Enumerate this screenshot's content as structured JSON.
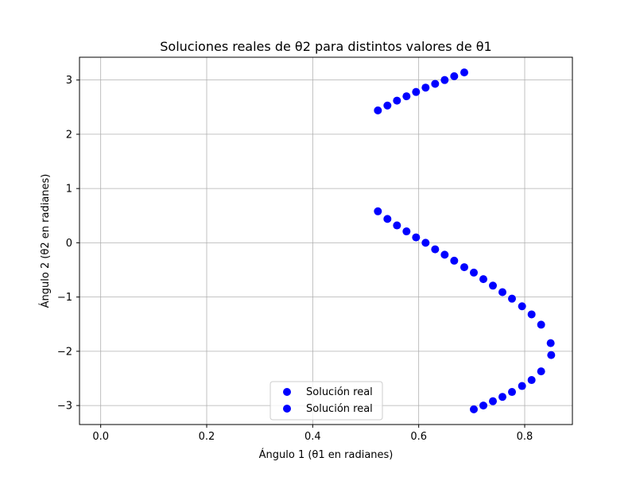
{
  "chart_data": {
    "type": "scatter",
    "title": "Soluciones reales de θ2 para distintos valores de θ1",
    "xlabel": "Ángulo 1 (θ1 en radianes)",
    "ylabel": "Ángulo 2 (θ2 en radianes)",
    "xlim": [
      -0.04,
      0.89
    ],
    "ylim": [
      -3.35,
      3.42
    ],
    "xticks": [
      0.0,
      0.2,
      0.4,
      0.6,
      0.8
    ],
    "xtick_labels": [
      "0.0",
      "0.2",
      "0.4",
      "0.6",
      "0.8"
    ],
    "yticks": [
      -3,
      -2,
      -1,
      0,
      1,
      2,
      3
    ],
    "ytick_labels": [
      "−3",
      "−2",
      "−1",
      "0",
      "1",
      "2",
      "3"
    ],
    "grid": true,
    "legend_position": "lower-center",
    "color": "#0000ff",
    "series": [
      {
        "name": "Solución real",
        "x": [
          0.523,
          0.541,
          0.559,
          0.577,
          0.595,
          0.613,
          0.631,
          0.649,
          0.667,
          0.686,
          0.704,
          0.722,
          0.74,
          0.758,
          0.776,
          0.795,
          0.813,
          0.831,
          0.849,
          0.85,
          0.831,
          0.813,
          0.795,
          0.776,
          0.758,
          0.74,
          0.722,
          0.704
        ],
        "y": [
          0.58,
          0.44,
          0.32,
          0.21,
          0.1,
          0.0,
          -0.12,
          -0.22,
          -0.33,
          -0.45,
          -0.55,
          -0.67,
          -0.79,
          -0.91,
          -1.03,
          -1.17,
          -1.32,
          -1.51,
          -1.85,
          -2.07,
          -2.37,
          -2.53,
          -2.64,
          -2.75,
          -2.84,
          -2.92,
          -3.0,
          -3.07
        ]
      },
      {
        "name": "Solución real",
        "x": [
          0.523,
          0.541,
          0.559,
          0.577,
          0.595,
          0.613,
          0.631,
          0.649,
          0.667,
          0.686
        ],
        "y": [
          2.44,
          2.53,
          2.62,
          2.7,
          2.78,
          2.86,
          2.93,
          3.0,
          3.07,
          3.14
        ]
      }
    ]
  }
}
